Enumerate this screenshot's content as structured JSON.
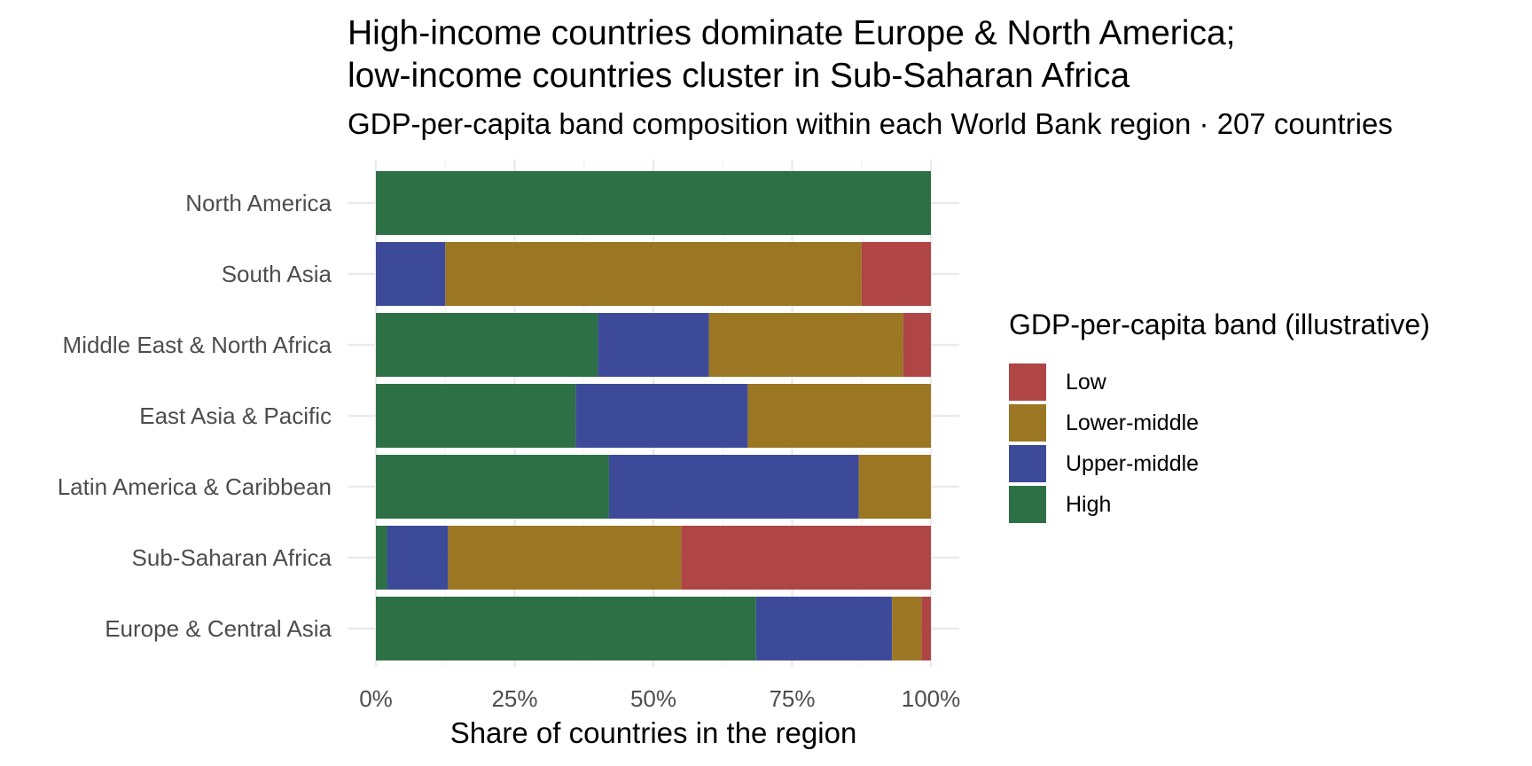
{
  "chart_data": {
    "type": "bar",
    "orientation": "horizontal",
    "stacked": true,
    "title_lines": [
      "High-income countries dominate Europe & North America;",
      "low-income countries cluster in Sub-Saharan Africa"
    ],
    "subtitle": "GDP-per-capita band composition within each World Bank region · 207 countries",
    "xlabel": "Share of countries in the region",
    "ylabel": "",
    "xlim": [
      0,
      1
    ],
    "x_ticks": [
      0,
      0.25,
      0.5,
      0.75,
      1
    ],
    "x_tick_labels": [
      "0%",
      "25%",
      "50%",
      "75%",
      "100%"
    ],
    "grid": true,
    "legend": {
      "title": "GDP-per-capita band (illustrative)",
      "placement": "right"
    },
    "categories": [
      "North America",
      "South Asia",
      "Middle East & North Africa",
      "East Asia & Pacific",
      "Latin America & Caribbean",
      "Sub-Saharan Africa",
      "Europe & Central Asia"
    ],
    "series": [
      {
        "name": "High",
        "color": "#2e7045",
        "values": [
          1.0,
          0.0,
          0.4,
          0.36,
          0.42,
          0.02,
          0.685
        ]
      },
      {
        "name": "Upper-middle",
        "color": "#3d4a99",
        "values": [
          0.0,
          0.125,
          0.2,
          0.31,
          0.45,
          0.11,
          0.245
        ]
      },
      {
        "name": "Lower-middle",
        "color": "#9b7623",
        "values": [
          0.0,
          0.75,
          0.35,
          0.33,
          0.13,
          0.42,
          0.053
        ]
      },
      {
        "name": "Low",
        "color": "#b04545",
        "values": [
          0.0,
          0.125,
          0.05,
          0.0,
          0.0,
          0.45,
          0.017
        ]
      }
    ],
    "legend_order": [
      "Low",
      "Lower-middle",
      "Upper-middle",
      "High"
    ]
  }
}
